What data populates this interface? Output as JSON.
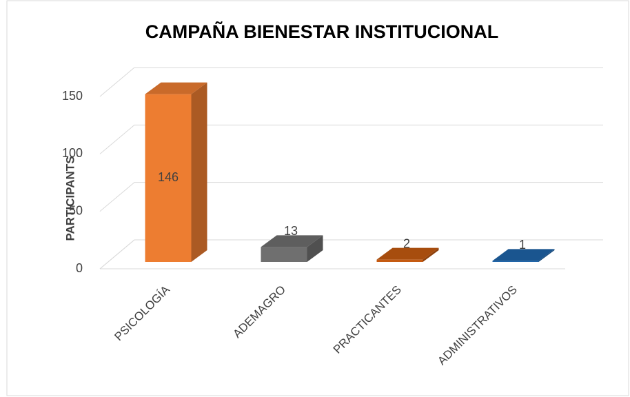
{
  "chart_data": {
    "type": "bar3d",
    "title": "CAMPAÑA BIENESTAR INSTITUCIONAL",
    "y_label": "PARTICIPANTS",
    "categories": [
      "PSICOLOGÍA",
      "ADEMAGRO",
      "PRACTICANTES",
      "ADMINISTRATIVOS"
    ],
    "values": [
      146,
      13,
      2,
      1
    ],
    "colors": [
      "#ed7d31",
      "#6f6f6f",
      "#c55a11",
      "#1f64a8"
    ],
    "ylim": [
      0,
      150
    ],
    "yticks": [
      0,
      50,
      100,
      150
    ],
    "grid": true
  }
}
